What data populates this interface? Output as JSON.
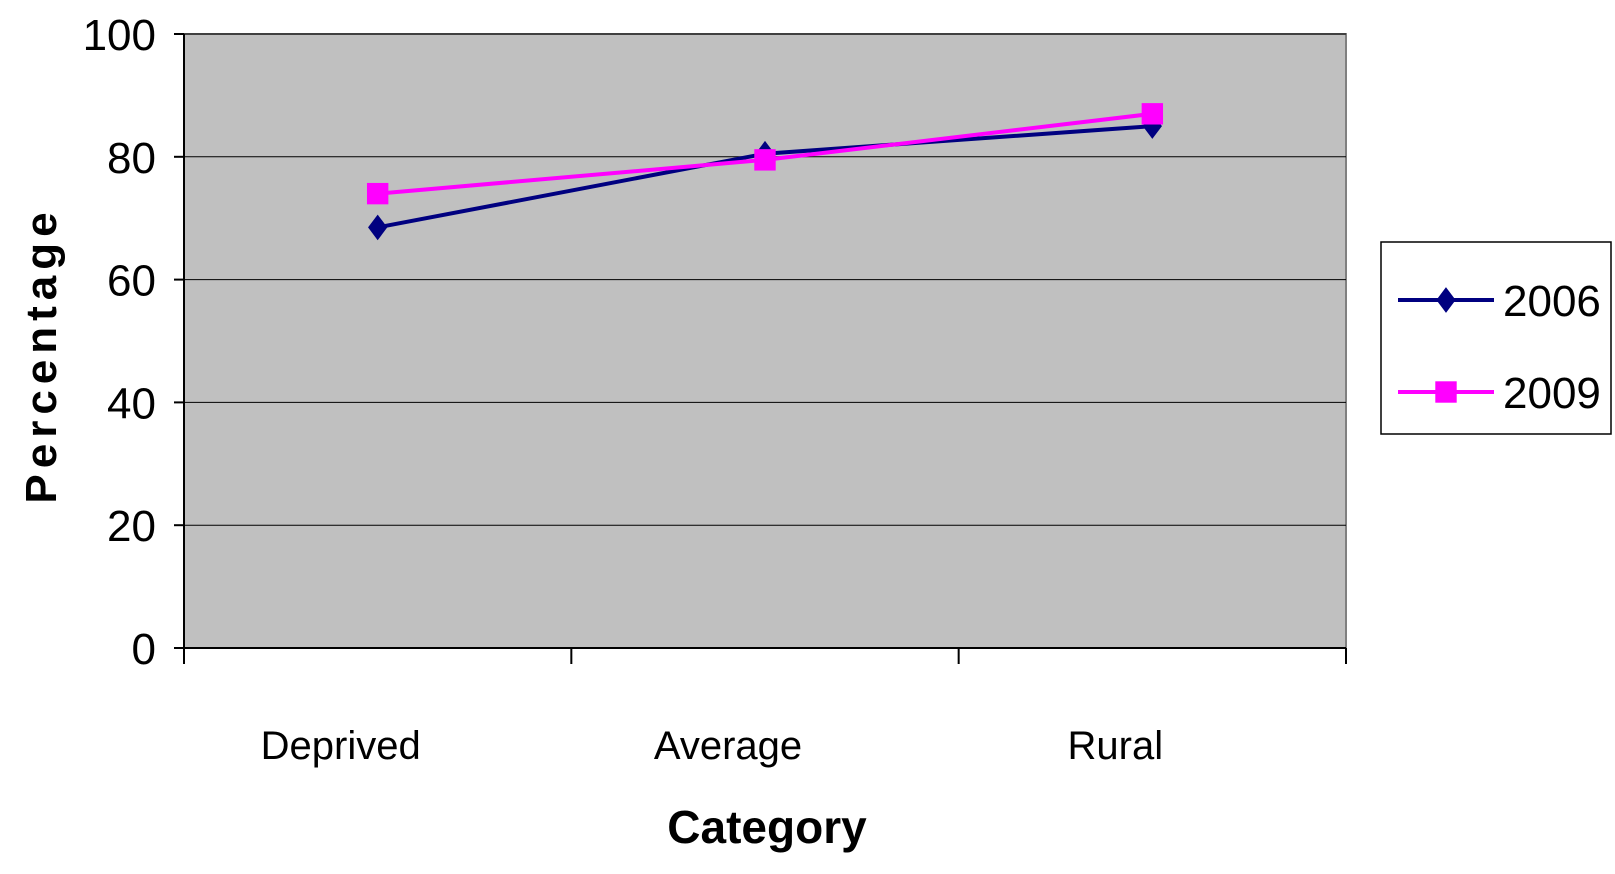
{
  "chart_data": {
    "type": "line",
    "categories": [
      "Deprived",
      "Average",
      "Rural"
    ],
    "series": [
      {
        "name": "2006",
        "values": [
          68.5,
          80.5,
          85
        ],
        "color": "#000080",
        "marker": "diamond"
      },
      {
        "name": "2009",
        "values": [
          74,
          79.5,
          87
        ],
        "color": "#FF00FF",
        "marker": "square"
      }
    ],
    "title": "",
    "xlabel": "Category",
    "ylabel": "Percentage",
    "ylim": [
      0,
      100
    ],
    "yticks": [
      0,
      20,
      40,
      60,
      80,
      100
    ],
    "grid": true,
    "legend_position": "right",
    "plot_background": "#C0C0C0",
    "gridline_color": "#000000"
  }
}
